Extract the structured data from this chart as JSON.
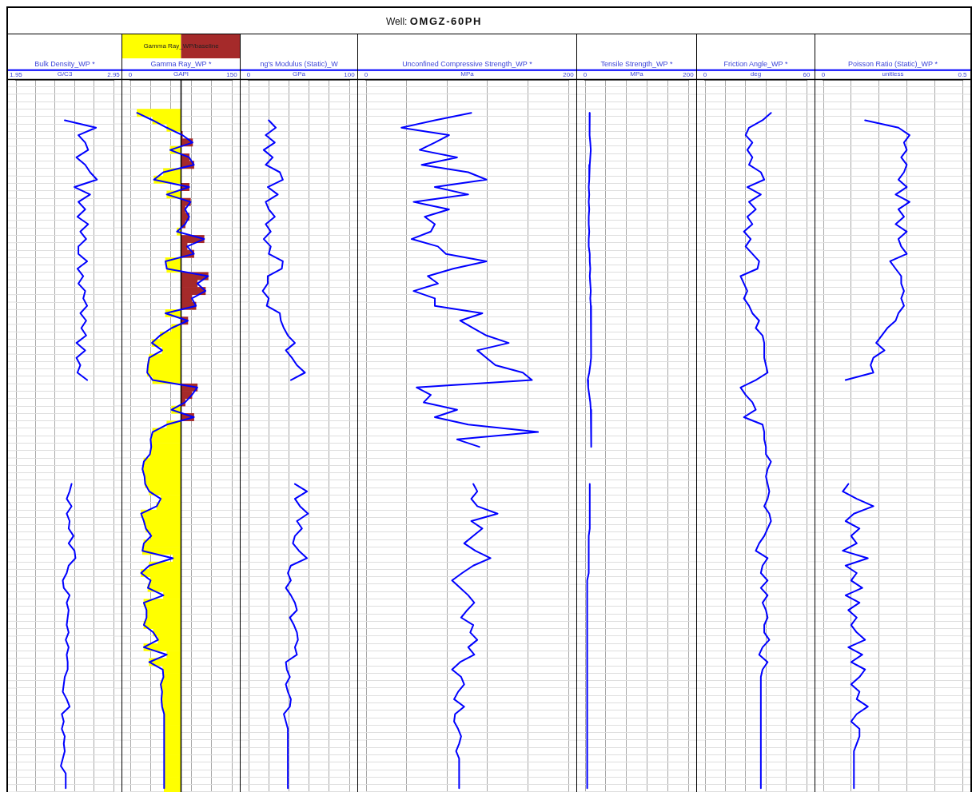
{
  "chart_data": [
    {
      "type": "other",
      "title": "Well: OMGZ-60PH"
    },
    {
      "type": "line",
      "orientation": "horizontal",
      "title": "Bulk Density_WP *",
      "xlabel": "G/C3",
      "xlim": [
        1.95,
        2.95
      ],
      "xticks": [
        1.95,
        {
          "value": 2.15,
          "label": null
        },
        {
          "value": 2.35,
          "label": null
        },
        {
          "value": 2.55,
          "label": null
        },
        {
          "value": 2.75,
          "label": null
        },
        2.95
      ],
      "grid": true,
      "tick_labels": "x",
      "color": "#0000ff",
      "categories": [
        null,
        null,
        null,
        null,
        null,
        null,
        null,
        null,
        null,
        null,
        null,
        null,
        null,
        null,
        null,
        null,
        null,
        null,
        null,
        null,
        null,
        null,
        null,
        null,
        null,
        null,
        null,
        null,
        null,
        null,
        null,
        null,
        null,
        null,
        null,
        null,
        null,
        null,
        null,
        null,
        null,
        null,
        null,
        null,
        null,
        null,
        null,
        null,
        null,
        null,
        null,
        null,
        null,
        null,
        null,
        null,
        null,
        null,
        null,
        null,
        null,
        null,
        null,
        null,
        null,
        null,
        null,
        null,
        null,
        null,
        null,
        null,
        null,
        null,
        null,
        null,
        null,
        null,
        null,
        null,
        null,
        null,
        null,
        null,
        null,
        null,
        null,
        null,
        null,
        null,
        null,
        null,
        null,
        null,
        null,
        null
      ],
      "values": [
        null,
        null,
        null,
        null,
        null,
        2.45,
        2.77,
        2.59,
        2.66,
        2.69,
        2.57,
        2.66,
        2.71,
        2.78,
        2.55,
        2.71,
        2.59,
        2.66,
        2.58,
        2.69,
        2.61,
        2.67,
        2.59,
        2.59,
        2.68,
        2.58,
        2.64,
        2.59,
        2.66,
        2.64,
        2.68,
        2.61,
        2.67,
        2.62,
        2.67,
        2.57,
        2.66,
        2.57,
        2.61,
        2.58,
        2.68,
        null,
        null,
        null,
        null,
        null,
        null,
        null,
        null,
        null,
        null,
        null,
        null,
        null,
        2.52,
        2.5,
        2.47,
        2.52,
        2.47,
        2.5,
        2.49,
        2.54,
        2.49,
        2.55,
        2.56,
        2.49,
        2.47,
        2.43,
        2.44,
        2.5,
        2.47,
        2.49,
        2.48,
        2.47,
        2.49,
        2.46,
        2.49,
        2.47,
        2.48,
        2.48,
        2.45,
        2.44,
        2.43,
        2.47,
        2.5,
        2.42,
        2.44,
        2.42,
        2.45,
        2.44,
        2.45,
        2.43,
        2.41,
        2.46,
        2.46,
        2.46
      ]
    },
    {
      "type": "bar",
      "orientation": "horizontal",
      "title": "Gamma Ray_WP *",
      "xlabel": "GAPI",
      "xlim": [
        0,
        150
      ],
      "xticks": [
        0,
        {
          "value": 30,
          "label": null
        },
        {
          "value": 60,
          "label": null
        },
        {
          "value": 90,
          "label": null
        },
        {
          "value": 120,
          "label": null
        },
        150
      ],
      "grid": true,
      "tick_labels": "x",
      "ref_lines": [
        {
          "axis": "x",
          "value": 75,
          "color": "#000000"
        }
      ],
      "legend_title": "Gamma Ray_WP/baseline",
      "categories": [
        null,
        null,
        null,
        null,
        null,
        null,
        null,
        null,
        null,
        null,
        null,
        null,
        null,
        null,
        null,
        null,
        null,
        null,
        null,
        null,
        null,
        null,
        null,
        null,
        null,
        null,
        null,
        null,
        null,
        null,
        null,
        null,
        null,
        null,
        null,
        null,
        null,
        null,
        null,
        null,
        null,
        null,
        null,
        null,
        null,
        null,
        null,
        null,
        null,
        null,
        null,
        null,
        null,
        null,
        null,
        null,
        null,
        null,
        null,
        null,
        null,
        null,
        null,
        null,
        null,
        null,
        null,
        null,
        null,
        null,
        null,
        null,
        null,
        null,
        null,
        null,
        null,
        null,
        null,
        null,
        null,
        null,
        null,
        null,
        null,
        null,
        null,
        null,
        null,
        null,
        null,
        null,
        null,
        null,
        null,
        null
      ],
      "series": [
        {
          "type": "bar",
          "base": [
            null,
            null,
            null,
            null,
            75,
            75,
            75,
            75,
            75,
            75,
            75,
            75,
            75,
            75,
            75,
            75,
            75,
            75,
            75,
            75,
            75,
            75,
            75,
            75,
            75,
            75,
            75,
            75,
            75,
            75,
            75,
            75,
            75,
            75,
            75,
            75,
            75,
            75,
            75,
            75,
            75,
            75,
            75,
            75,
            75,
            75,
            75,
            75,
            75,
            75,
            75,
            75,
            75,
            75,
            75,
            75,
            75,
            75,
            75,
            75,
            75,
            75,
            75,
            75,
            75,
            75,
            75,
            75,
            75,
            75,
            75,
            75,
            75,
            75,
            75,
            75,
            75,
            75,
            75,
            75,
            75,
            75,
            75,
            75,
            75,
            75,
            75,
            75,
            75,
            75,
            75,
            75,
            75,
            75,
            75,
            75
          ],
          "values": [
            null,
            null,
            null,
            null,
            -65,
            -42,
            -21,
            2,
            17,
            -16,
            12,
            19,
            -26,
            -40,
            12,
            -21,
            14,
            6,
            12,
            6,
            -6,
            34,
            9,
            19,
            -23,
            -21,
            40,
            24,
            36,
            16,
            22,
            -23,
            10,
            -14,
            -31,
            -43,
            -28,
            -47,
            -49,
            -50,
            -42,
            24,
            16,
            6,
            -14,
            19,
            -21,
            -42,
            -45,
            -44,
            -46,
            -55,
            -57,
            -54,
            -53,
            -47,
            -30,
            -36,
            -59,
            -55,
            -52,
            -44,
            -55,
            -57,
            -12,
            -47,
            -59,
            -45,
            -49,
            -26,
            -55,
            -51,
            -51,
            -55,
            -41,
            -34,
            -55,
            -21,
            -47,
            -27,
            -26,
            -30,
            -28,
            -29,
            -28,
            -25,
            -25,
            -25,
            -25,
            -25,
            -25,
            -25,
            -25,
            -25,
            -25,
            -25
          ],
          "colors": [
            null,
            null,
            null,
            null,
            "#ffff00",
            "#ffff00",
            "#ffff00",
            "#a52a2a",
            "#a52a2a",
            "#ffff00",
            "#a52a2a",
            "#a52a2a",
            "#ffff00",
            "#ffff00",
            "#a52a2a",
            "#ffff00",
            "#a52a2a",
            "#a52a2a",
            "#a52a2a",
            "#a52a2a",
            "#ffff00",
            "#a52a2a",
            "#a52a2a",
            "#a52a2a",
            "#ffff00",
            "#ffff00",
            "#a52a2a",
            "#a52a2a",
            "#a52a2a",
            "#a52a2a",
            "#a52a2a",
            "#ffff00",
            "#a52a2a",
            "#ffff00",
            "#ffff00",
            "#ffff00",
            "#ffff00",
            "#ffff00",
            "#ffff00",
            "#ffff00",
            "#ffff00",
            "#a52a2a",
            "#a52a2a",
            "#a52a2a",
            "#ffff00",
            "#a52a2a",
            "#ffff00",
            "#ffff00",
            "#ffff00",
            "#ffff00",
            "#ffff00",
            "#ffff00",
            "#ffff00",
            "#ffff00",
            "#ffff00",
            "#ffff00",
            "#ffff00",
            "#ffff00",
            "#ffff00",
            "#ffff00",
            "#ffff00",
            "#ffff00",
            "#ffff00",
            "#ffff00",
            "#ffff00",
            "#ffff00",
            "#ffff00",
            "#ffff00",
            "#ffff00",
            "#ffff00",
            "#ffff00",
            "#ffff00",
            "#ffff00",
            "#ffff00",
            "#ffff00",
            "#ffff00",
            "#ffff00",
            "#ffff00",
            "#ffff00",
            "#ffff00",
            "#ffff00",
            "#ffff00",
            "#ffff00",
            "#ffff00",
            "#ffff00",
            "#ffff00",
            "#ffff00",
            "#ffff00",
            "#ffff00",
            "#ffff00",
            "#ffff00",
            "#ffff00",
            "#ffff00",
            "#ffff00",
            "#ffff00",
            "#ffff00"
          ]
        },
        {
          "type": "line",
          "color": "#0000ff",
          "values": [
            null,
            null,
            null,
            null,
            10,
            33,
            54,
            77,
            92,
            59,
            87,
            94,
            49,
            35,
            87,
            54,
            89,
            81,
            87,
            81,
            69,
            109,
            84,
            94,
            52,
            54,
            115,
            99,
            111,
            91,
            97,
            52,
            85,
            61,
            44,
            32,
            47,
            28,
            26,
            25,
            33,
            99,
            91,
            81,
            61,
            94,
            54,
            33,
            30,
            31,
            29,
            20,
            18,
            21,
            22,
            28,
            45,
            39,
            16,
            20,
            23,
            31,
            20,
            18,
            63,
            28,
            16,
            30,
            26,
            49,
            20,
            24,
            24,
            20,
            34,
            41,
            20,
            54,
            28,
            48,
            49,
            45,
            47,
            46,
            47,
            50,
            50,
            50,
            50,
            50,
            50,
            50,
            50,
            50,
            50,
            50
          ]
        }
      ]
    },
    {
      "type": "line",
      "orientation": "horizontal",
      "title": "ng's Modulus (Static)_W",
      "xlabel": "GPa",
      "xlim": [
        0,
        100
      ],
      "xticks": [
        0,
        {
          "value": 20,
          "label": null
        },
        {
          "value": 40,
          "label": null
        },
        {
          "value": 60,
          "label": null
        },
        {
          "value": 80,
          "label": null
        },
        100
      ],
      "grid": true,
      "tick_labels": "x",
      "color": "#0000ff",
      "categories": [
        null,
        null,
        null,
        null,
        null,
        null,
        null,
        null,
        null,
        null,
        null,
        null,
        null,
        null,
        null,
        null,
        null,
        null,
        null,
        null,
        null,
        null,
        null,
        null,
        null,
        null,
        null,
        null,
        null,
        null,
        null,
        null,
        null,
        null,
        null,
        null,
        null,
        null,
        null,
        null,
        null,
        null,
        null,
        null,
        null,
        null,
        null,
        null,
        null,
        null,
        null,
        null,
        null,
        null,
        null,
        null,
        null,
        null,
        null,
        null,
        null,
        null,
        null,
        null,
        null,
        null,
        null,
        null,
        null,
        null,
        null,
        null,
        null,
        null,
        null,
        null,
        null,
        null,
        null,
        null,
        null,
        null,
        null,
        null,
        null,
        null,
        null,
        null,
        null,
        null,
        null,
        null,
        null,
        null,
        null,
        null
      ],
      "values": [
        null,
        null,
        null,
        null,
        null,
        20,
        27,
        17,
        26,
        15,
        24,
        17,
        31,
        34,
        19,
        29,
        17,
        20,
        26,
        17,
        22,
        15,
        22,
        20,
        34,
        33,
        19,
        19,
        14,
        20,
        18,
        31,
        32,
        35,
        39,
        46,
        37,
        43,
        48,
        56,
        42,
        null,
        null,
        null,
        null,
        null,
        null,
        null,
        null,
        null,
        null,
        null,
        null,
        null,
        46,
        58,
        46,
        51,
        59,
        48,
        53,
        46,
        44,
        50,
        58,
        42,
        39,
        42,
        37,
        42,
        46,
        48,
        41,
        45,
        48,
        49,
        46,
        48,
        37,
        38,
        41,
        37,
        39,
        42,
        41,
        35,
        37,
        39,
        39,
        39,
        39,
        39,
        39,
        39,
        39,
        39
      ]
    },
    {
      "type": "line",
      "orientation": "horizontal",
      "title": "Unconfined Compressive Strength_WP *",
      "xlabel": "MPa",
      "xlim": [
        0,
        200
      ],
      "xticks": [
        0,
        {
          "value": 40,
          "label": null
        },
        {
          "value": 80,
          "label": null
        },
        {
          "value": 120,
          "label": null
        },
        {
          "value": 160,
          "label": null
        },
        200
      ],
      "grid": true,
      "tick_labels": "x",
      "color": "#0000ff",
      "categories": [
        null,
        null,
        null,
        null,
        null,
        null,
        null,
        null,
        null,
        null,
        null,
        null,
        null,
        null,
        null,
        null,
        null,
        null,
        null,
        null,
        null,
        null,
        null,
        null,
        null,
        null,
        null,
        null,
        null,
        null,
        null,
        null,
        null,
        null,
        null,
        null,
        null,
        null,
        null,
        null,
        null,
        null,
        null,
        null,
        null,
        null,
        null,
        null,
        null,
        null,
        null,
        null,
        null,
        null,
        null,
        null,
        null,
        null,
        null,
        null,
        null,
        null,
        null,
        null,
        null,
        null,
        null,
        null,
        null,
        null,
        null,
        null,
        null,
        null,
        null,
        null,
        null,
        null,
        null,
        null,
        null,
        null,
        null,
        null,
        null,
        null,
        null,
        null,
        null,
        null,
        null,
        null,
        null,
        null,
        null,
        null
      ],
      "values": [
        null,
        null,
        null,
        null,
        104,
        68,
        35,
        82,
        68,
        53,
        90,
        55,
        101,
        119,
        68,
        101,
        47,
        82,
        58,
        68,
        64,
        45,
        71,
        79,
        119,
        86,
        61,
        71,
        47,
        68,
        68,
        115,
        93,
        106,
        119,
        141,
        110,
        119,
        128,
        155,
        164,
        50,
        64,
        57,
        90,
        68,
        101,
        170,
        90,
        112,
        null,
        null,
        null,
        null,
        106,
        110,
        104,
        110,
        130,
        104,
        115,
        106,
        97,
        108,
        123,
        106,
        95,
        85,
        93,
        101,
        107,
        100,
        94,
        106,
        103,
        110,
        101,
        107,
        93,
        85,
        94,
        97,
        91,
        87,
        97,
        88,
        87,
        91,
        94,
        92,
        89,
        92,
        92,
        92,
        92,
        92
      ]
    },
    {
      "type": "line",
      "orientation": "horizontal",
      "title": "Tensile Strength_WP *",
      "xlabel": "MPa",
      "xlim": [
        0,
        200
      ],
      "xticks": [
        0,
        {
          "value": 40,
          "label": null
        },
        {
          "value": 80,
          "label": null
        },
        {
          "value": 120,
          "label": null
        },
        {
          "value": 160,
          "label": null
        },
        200
      ],
      "grid": true,
      "tick_labels": "x",
      "color": "#0000ff",
      "categories": [
        null,
        null,
        null,
        null,
        null,
        null,
        null,
        null,
        null,
        null,
        null,
        null,
        null,
        null,
        null,
        null,
        null,
        null,
        null,
        null,
        null,
        null,
        null,
        null,
        null,
        null,
        null,
        null,
        null,
        null,
        null,
        null,
        null,
        null,
        null,
        null,
        null,
        null,
        null,
        null,
        null,
        null,
        null,
        null,
        null,
        null,
        null,
        null,
        null,
        null,
        null,
        null,
        null,
        null,
        null,
        null,
        null,
        null,
        null,
        null,
        null,
        null,
        null,
        null,
        null,
        null,
        null,
        null,
        null,
        null,
        null,
        null,
        null,
        null,
        null,
        null,
        null,
        null,
        null,
        null,
        null,
        null,
        null,
        null,
        null,
        null,
        null,
        null,
        null,
        null,
        null,
        null,
        null,
        null,
        null,
        null
      ],
      "values": [
        null,
        null,
        null,
        null,
        9,
        8,
        9,
        9,
        10,
        11,
        10,
        9,
        8,
        8,
        7,
        8,
        7,
        8,
        7,
        7,
        8,
        7,
        7,
        9,
        9,
        10,
        9,
        10,
        11,
        10,
        11,
        12,
        11,
        12,
        12,
        11,
        12,
        11,
        10,
        8,
        5,
        6,
        8,
        10,
        11,
        12,
        12,
        11,
        12,
        12,
        null,
        null,
        null,
        null,
        9,
        9,
        9,
        9,
        9,
        9,
        9,
        7,
        7,
        7,
        7,
        7,
        7,
        4,
        4,
        4,
        4,
        4,
        4,
        4,
        4,
        4,
        4,
        4,
        4,
        4,
        4,
        4,
        4,
        4,
        4,
        4,
        4,
        4,
        4,
        4,
        4,
        4,
        4,
        4,
        4,
        4
      ]
    },
    {
      "type": "line",
      "orientation": "horizontal",
      "title": "Friction Angle_WP *",
      "xlabel": "deg",
      "xlim": [
        0,
        60
      ],
      "xticks": [
        0,
        {
          "value": 12,
          "label": null
        },
        {
          "value": 24,
          "label": null
        },
        {
          "value": 36,
          "label": null
        },
        {
          "value": 48,
          "label": null
        },
        60
      ],
      "grid": true,
      "tick_labels": "x",
      "color": "#0000ff",
      "categories": [
        null,
        null,
        null,
        null,
        null,
        null,
        null,
        null,
        null,
        null,
        null,
        null,
        null,
        null,
        null,
        null,
        null,
        null,
        null,
        null,
        null,
        null,
        null,
        null,
        null,
        null,
        null,
        null,
        null,
        null,
        null,
        null,
        null,
        null,
        null,
        null,
        null,
        null,
        null,
        null,
        null,
        null,
        null,
        null,
        null,
        null,
        null,
        null,
        null,
        null,
        null,
        null,
        null,
        null,
        null,
        null,
        null,
        null,
        null,
        null,
        null,
        null,
        null,
        null,
        null,
        null,
        null,
        null,
        null,
        null,
        null,
        null,
        null,
        null,
        null,
        null,
        null,
        null,
        null,
        null,
        null,
        null,
        null,
        null,
        null,
        null,
        null,
        null,
        null,
        null,
        null,
        null,
        null,
        null,
        null,
        null
      ],
      "values": [
        null,
        null,
        null,
        null,
        39,
        34,
        26,
        24,
        28,
        25,
        28,
        26,
        33,
        35,
        25,
        33,
        26,
        30,
        25,
        28,
        23,
        27,
        24,
        28,
        32,
        31,
        21,
        23,
        25,
        23,
        26,
        28,
        32,
        30,
        34,
        35,
        35,
        35,
        36,
        37,
        30,
        21,
        24,
        28,
        30,
        23,
        34,
        35,
        35,
        36,
        36,
        39,
        37,
        36,
        37,
        38,
        37,
        35,
        38,
        39,
        37,
        35,
        32,
        30,
        37,
        34,
        33,
        37,
        33,
        37,
        34,
        36,
        37,
        35,
        35,
        38,
        34,
        32,
        37,
        34,
        33,
        33,
        33,
        33,
        33,
        33,
        33,
        33,
        33,
        33,
        33,
        33,
        33,
        33,
        33,
        33
      ]
    },
    {
      "type": "line",
      "orientation": "horizontal",
      "title": "Poisson Ratio (Static)_WP *",
      "xlabel": "unitless",
      "xlim": [
        0,
        0.5
      ],
      "xticks": [
        0,
        {
          "value": 0.1,
          "label": null
        },
        {
          "value": 0.2,
          "label": null
        },
        {
          "value": 0.3,
          "label": null
        },
        {
          "value": 0.4,
          "label": null
        },
        0.5
      ],
      "grid": true,
      "tick_labels": "x",
      "color": "#0000ff",
      "categories": [
        null,
        null,
        null,
        null,
        null,
        null,
        null,
        null,
        null,
        null,
        null,
        null,
        null,
        null,
        null,
        null,
        null,
        null,
        null,
        null,
        null,
        null,
        null,
        null,
        null,
        null,
        null,
        null,
        null,
        null,
        null,
        null,
        null,
        null,
        null,
        null,
        null,
        null,
        null,
        null,
        null,
        null,
        null,
        null,
        null,
        null,
        null,
        null,
        null,
        null,
        null,
        null,
        null,
        null,
        null,
        null,
        null,
        null,
        null,
        null,
        null,
        null,
        null,
        null,
        null,
        null,
        null,
        null,
        null,
        null,
        null,
        null,
        null,
        null,
        null,
        null,
        null,
        null,
        null,
        null,
        null,
        null,
        null,
        null,
        null,
        null,
        null,
        null,
        null,
        null,
        null,
        null,
        null,
        null,
        null,
        null
      ],
      "values": [
        null,
        null,
        null,
        null,
        null,
        0.15,
        0.27,
        0.31,
        0.29,
        0.3,
        0.28,
        0.3,
        0.29,
        0.27,
        0.3,
        0.26,
        0.31,
        0.27,
        0.29,
        0.26,
        0.3,
        0.27,
        0.28,
        0.3,
        0.24,
        0.26,
        0.28,
        0.28,
        0.29,
        0.28,
        0.29,
        0.27,
        0.26,
        0.23,
        0.21,
        0.19,
        0.22,
        0.18,
        0.17,
        0.18,
        0.08,
        null,
        null,
        null,
        null,
        null,
        null,
        null,
        null,
        null,
        null,
        null,
        null,
        null,
        0.09,
        0.07,
        0.12,
        0.18,
        0.11,
        0.08,
        0.13,
        0.1,
        0.12,
        0.07,
        0.16,
        0.08,
        0.12,
        0.1,
        0.14,
        0.08,
        0.13,
        0.09,
        0.12,
        0.1,
        0.12,
        0.15,
        0.09,
        0.14,
        0.1,
        0.15,
        0.13,
        0.1,
        0.13,
        0.12,
        0.16,
        0.12,
        0.1,
        0.13,
        0.13,
        0.12,
        0.11,
        0.11,
        0.11,
        0.11,
        0.11,
        0.11
      ]
    }
  ]
}
